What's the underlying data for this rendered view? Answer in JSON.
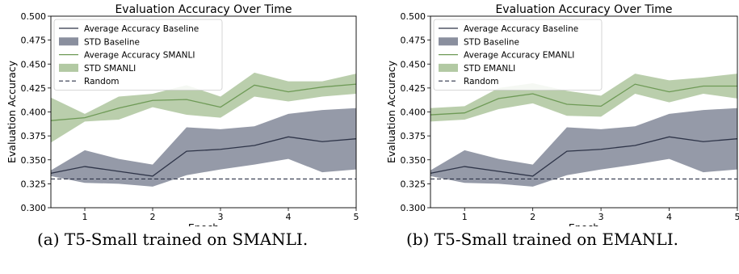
{
  "chart_data": [
    {
      "type": "line",
      "title": "Evaluation Accuracy Over Time",
      "xlabel": "Epoch",
      "ylabel": "Evaluation Accuracy",
      "xlim": [
        0.5,
        5
      ],
      "ylim": [
        0.3,
        0.5
      ],
      "xticks": [
        "1",
        "2",
        "3",
        "4",
        "5"
      ],
      "yticks": [
        "0.300",
        "0.325",
        "0.350",
        "0.375",
        "0.400",
        "0.425",
        "0.450",
        "0.475",
        "0.500"
      ],
      "x": [
        0.5,
        1,
        1.5,
        2,
        2.5,
        3,
        3.5,
        4,
        4.5,
        5
      ],
      "legend_position": "top-left",
      "series": [
        {
          "name": "Average Accuracy Baseline",
          "color": "#2e3448",
          "values": [
            0.336,
            0.343,
            0.338,
            0.333,
            0.359,
            0.361,
            0.365,
            0.374,
            0.369,
            0.372
          ]
        },
        {
          "name": "STD Baseline",
          "kind": "band",
          "color": "#8a8f9e",
          "lower": [
            0.333,
            0.326,
            0.325,
            0.322,
            0.334,
            0.34,
            0.345,
            0.351,
            0.337,
            0.34
          ],
          "upper": [
            0.339,
            0.36,
            0.351,
            0.345,
            0.384,
            0.382,
            0.385,
            0.398,
            0.402,
            0.404
          ]
        },
        {
          "name": "Average Accuracy SMANLI",
          "color": "#6e9a56",
          "values": [
            0.391,
            0.394,
            0.404,
            0.412,
            0.413,
            0.405,
            0.428,
            0.421,
            0.426,
            0.429
          ]
        },
        {
          "name": "STD SMANLI",
          "kind": "band",
          "color": "#b2c9a3",
          "lower": [
            0.368,
            0.39,
            0.392,
            0.405,
            0.397,
            0.394,
            0.416,
            0.411,
            0.416,
            0.419
          ],
          "upper": [
            0.415,
            0.398,
            0.416,
            0.419,
            0.428,
            0.416,
            0.441,
            0.432,
            0.432,
            0.44
          ]
        },
        {
          "name": "Random",
          "kind": "hline",
          "color": "#2e3448",
          "value": 0.33
        }
      ]
    },
    {
      "type": "line",
      "title": "Evaluation Accuracy Over Time",
      "xlabel": "Epoch",
      "ylabel": "Evaluation Accuracy",
      "xlim": [
        0.5,
        5
      ],
      "ylim": [
        0.3,
        0.5
      ],
      "xticks": [
        "1",
        "2",
        "3",
        "4",
        "5"
      ],
      "yticks": [
        "0.300",
        "0.325",
        "0.350",
        "0.375",
        "0.400",
        "0.425",
        "0.450",
        "0.475",
        "0.500"
      ],
      "x": [
        0.5,
        1,
        1.5,
        2,
        2.5,
        3,
        3.5,
        4,
        4.5,
        5
      ],
      "legend_position": "top-left",
      "series": [
        {
          "name": "Average Accuracy Baseline",
          "color": "#2e3448",
          "values": [
            0.336,
            0.343,
            0.338,
            0.333,
            0.359,
            0.361,
            0.365,
            0.374,
            0.369,
            0.372
          ]
        },
        {
          "name": "STD Baseline",
          "kind": "band",
          "color": "#8a8f9e",
          "lower": [
            0.333,
            0.326,
            0.325,
            0.322,
            0.334,
            0.34,
            0.345,
            0.351,
            0.337,
            0.34
          ],
          "upper": [
            0.339,
            0.36,
            0.351,
            0.345,
            0.384,
            0.382,
            0.385,
            0.398,
            0.402,
            0.404
          ]
        },
        {
          "name": "Average Accuracy EMANLI",
          "color": "#6e9a56",
          "values": [
            0.397,
            0.399,
            0.414,
            0.419,
            0.408,
            0.406,
            0.429,
            0.421,
            0.427,
            0.427
          ]
        },
        {
          "name": "STD EMANLI",
          "kind": "band",
          "color": "#b2c9a3",
          "lower": [
            0.39,
            0.392,
            0.403,
            0.409,
            0.396,
            0.395,
            0.419,
            0.41,
            0.419,
            0.414
          ],
          "upper": [
            0.404,
            0.406,
            0.425,
            0.43,
            0.422,
            0.417,
            0.44,
            0.433,
            0.436,
            0.44
          ]
        },
        {
          "name": "Random",
          "kind": "hline",
          "color": "#2e3448",
          "value": 0.33
        }
      ]
    }
  ],
  "captions": {
    "a": "(a) T5-Small trained on SMANLI.",
    "b": "(b) T5-Small trained on EMANLI."
  }
}
